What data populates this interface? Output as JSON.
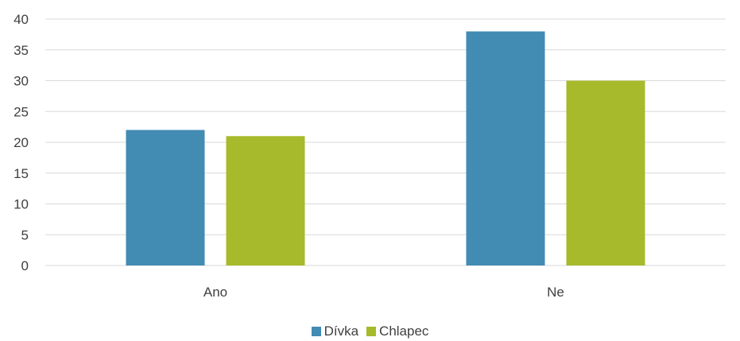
{
  "chart_data": {
    "type": "bar",
    "categories": [
      "Ano",
      "Ne"
    ],
    "series": [
      {
        "name": "Dívka",
        "values": [
          22,
          38
        ],
        "color": "#428BB3"
      },
      {
        "name": "Chlapec",
        "values": [
          21,
          30
        ],
        "color": "#A7BA2B"
      }
    ],
    "ylim": [
      0,
      40
    ],
    "yticks": [
      "0",
      "5",
      "10",
      "15",
      "20",
      "25",
      "30",
      "35",
      "40"
    ],
    "grid": true,
    "legend_position": "bottom"
  },
  "colors": {
    "grid": "#D9D9D9",
    "text": "#404040"
  }
}
